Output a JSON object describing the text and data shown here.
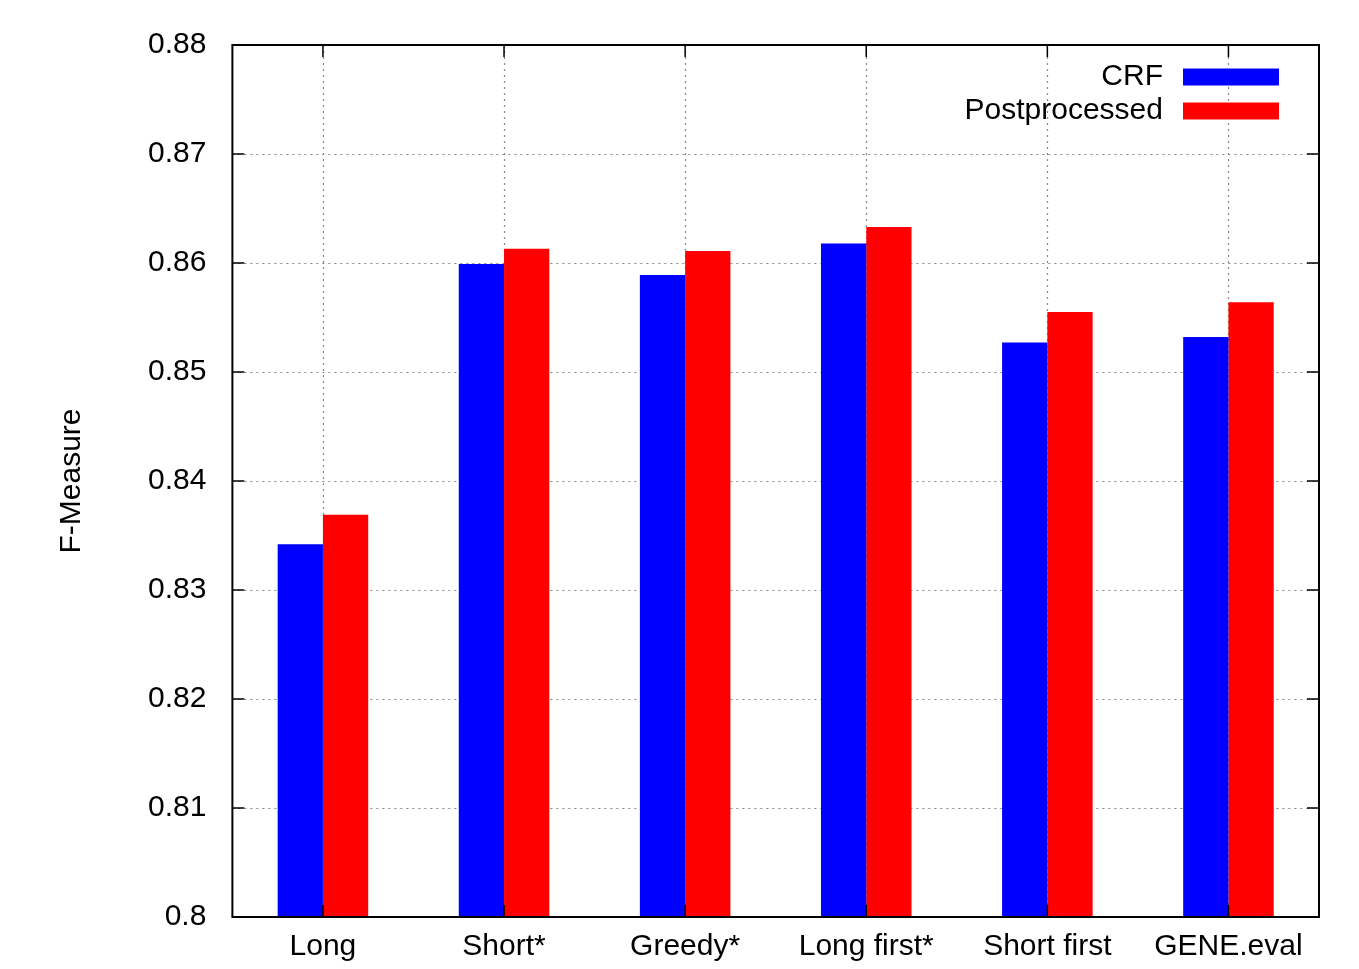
{
  "chart_data": {
    "type": "bar",
    "ylabel": "F-Measure",
    "categories": [
      "Long",
      "Short*",
      "Greedy*",
      "Long first*",
      "Short first",
      "GENE.eval"
    ],
    "series": [
      {
        "name": "CRF",
        "color": "#0000ff",
        "values": [
          0.8342,
          0.8599,
          0.8589,
          0.8618,
          0.8527,
          0.8532
        ]
      },
      {
        "name": "Postprocessed",
        "color": "#ff0000",
        "values": [
          0.8369,
          0.8613,
          0.8611,
          0.8633,
          0.8555,
          0.8564
        ]
      }
    ],
    "ylim": [
      0.8,
      0.88
    ],
    "yticks": [
      0.8,
      0.81,
      0.82,
      0.83,
      0.84,
      0.85,
      0.86,
      0.87,
      0.88
    ],
    "grid": true,
    "legend": "top right"
  }
}
